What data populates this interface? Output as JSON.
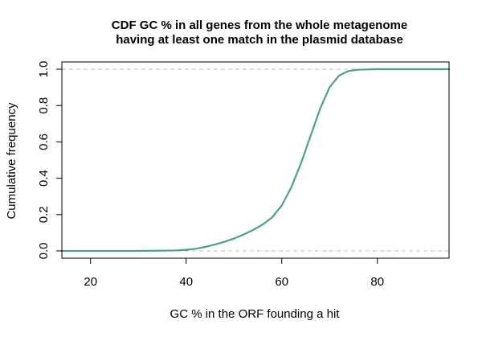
{
  "chart_data": {
    "type": "line",
    "title": "CDF GC % in all genes from the whole metagenome",
    "subtitle": "having at least one match in the plasmid database",
    "xlabel": "GC % in the ORF founding a hit",
    "ylabel": "Cumulative frequency",
    "xlim": [
      14,
      95
    ],
    "ylim": [
      -0.04,
      1.04
    ],
    "x_ticks": [
      20,
      40,
      60,
      80
    ],
    "y_ticks": [
      0.0,
      0.2,
      0.4,
      0.6,
      0.8,
      1.0
    ],
    "x_tick_labels": [
      "20",
      "40",
      "60",
      "80"
    ],
    "y_tick_labels": [
      "0.0",
      "0.2",
      "0.4",
      "0.6",
      "0.8",
      "1.0"
    ],
    "reference_lines": [
      0,
      1
    ],
    "reference_line_color": "#bdbdbd",
    "line_color": "#4aa37e",
    "grid": false,
    "series": [
      {
        "x": [
          14,
          30,
          35,
          38,
          40,
          42,
          44,
          46,
          48,
          50,
          52,
          54,
          56,
          58,
          60,
          62,
          64,
          66,
          68,
          70,
          72,
          74,
          76,
          78,
          80,
          85,
          95
        ],
        "values": [
          0.0,
          0.0,
          0.001,
          0.003,
          0.006,
          0.012,
          0.022,
          0.035,
          0.05,
          0.068,
          0.09,
          0.115,
          0.145,
          0.185,
          0.25,
          0.35,
          0.48,
          0.63,
          0.78,
          0.9,
          0.965,
          0.99,
          0.997,
          0.999,
          1.0,
          1.0,
          1.0
        ]
      }
    ]
  }
}
